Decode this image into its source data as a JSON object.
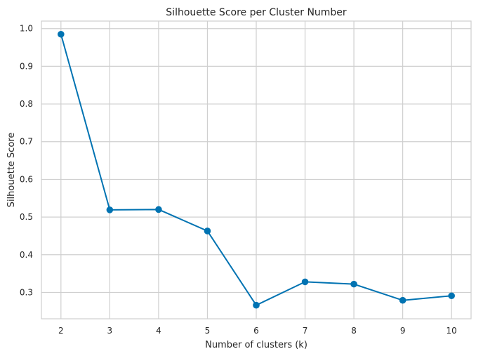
{
  "chart_data": {
    "type": "line",
    "title": "Silhouette Score per Cluster Number",
    "xlabel": "Number of clusters (k)",
    "ylabel": "Silhouette Score",
    "x": [
      2,
      3,
      4,
      5,
      6,
      7,
      8,
      9,
      10
    ],
    "series": [
      {
        "values": [
          0.985,
          0.519,
          0.52,
          0.463,
          0.266,
          0.328,
          0.322,
          0.279,
          0.291
        ],
        "color": "#0173B2",
        "marker": "circle"
      }
    ],
    "xticks": [
      "2",
      "3",
      "4",
      "5",
      "6",
      "7",
      "8",
      "9",
      "10"
    ],
    "yticks": [
      "0.3",
      "0.4",
      "0.5",
      "0.6",
      "0.7",
      "0.8",
      "0.9",
      "1.0"
    ],
    "xlim": [
      1.6,
      10.4
    ],
    "ylim": [
      0.23,
      1.02
    ],
    "grid": true,
    "colors": {
      "grid": "#CFCFCF",
      "frame": "#CFCFCF",
      "background": "#FFFFFF"
    }
  }
}
